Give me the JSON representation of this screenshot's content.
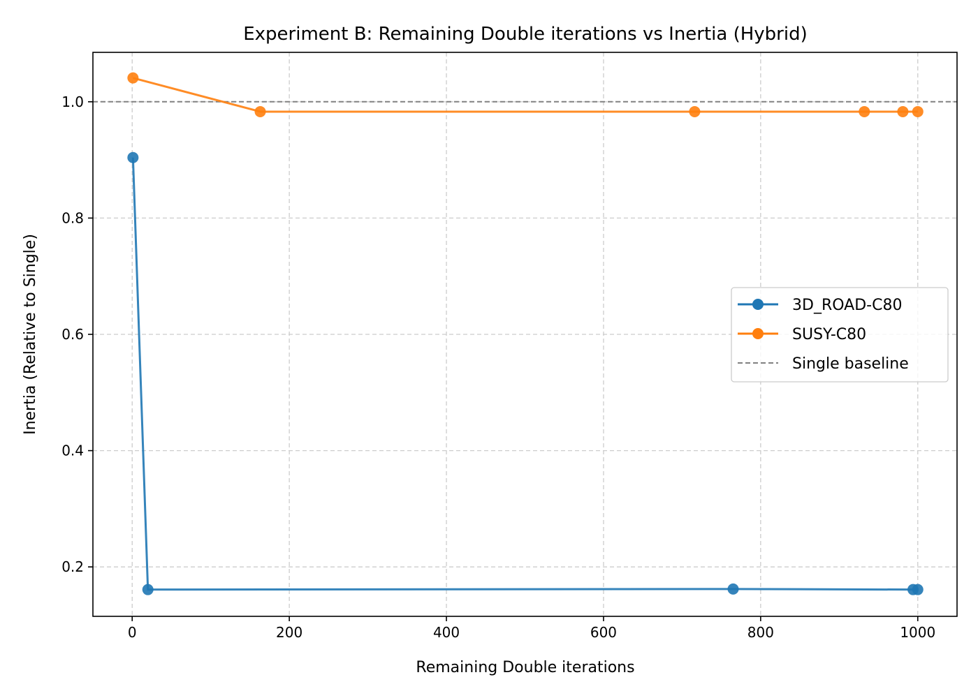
{
  "chart_data": {
    "type": "line",
    "title": "Experiment B: Remaining Double iterations vs Inertia (Hybrid)",
    "xlabel": "Remaining Double iterations",
    "ylabel": "Inertia (Relative to Single)",
    "xlim": [
      -50,
      1050
    ],
    "ylim": [
      0.115,
      1.085
    ],
    "xticks": [
      0,
      200,
      400,
      600,
      800,
      1000
    ],
    "yticks": [
      0.2,
      0.4,
      0.6,
      0.8,
      1.0
    ],
    "ytick_labels": [
      "0.2",
      "0.4",
      "0.6",
      "0.8",
      "1.0"
    ],
    "grid": true,
    "legend_position": "center-right",
    "series": [
      {
        "name": "3D_ROAD-C80",
        "color": "#1f77b4",
        "marker": "circle",
        "x": [
          1,
          20,
          765,
          994,
          1000
        ],
        "y": [
          0.904,
          0.161,
          0.162,
          0.161,
          0.161
        ]
      },
      {
        "name": "SUSY-C80",
        "color": "#ff7f0e",
        "marker": "circle",
        "x": [
          1,
          163,
          716,
          932,
          981,
          1000
        ],
        "y": [
          1.041,
          0.983,
          0.983,
          0.983,
          0.983,
          0.983
        ]
      }
    ],
    "baseline": {
      "name": "Single baseline",
      "y": 1.0,
      "color": "#808080",
      "style": "dashed"
    }
  }
}
